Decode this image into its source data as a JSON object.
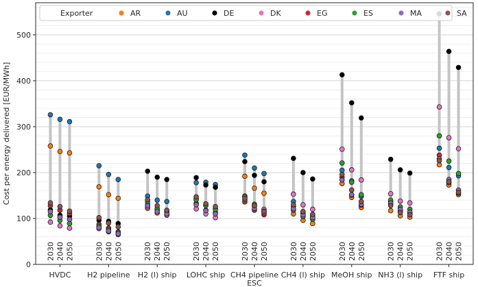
{
  "chart_data": {
    "type": "scatter",
    "xlabel": "ESC",
    "ylabel": "Cost per energy delivered [EUR/MWh]",
    "ylim": [
      0,
      570
    ],
    "yticks": [
      0,
      100,
      200,
      300,
      400,
      500
    ],
    "grid": "horizontal",
    "legend": {
      "title": "Exporter",
      "placement": "top"
    },
    "categories": [
      "HVDC",
      "H2 pipeline",
      "H2 (l) ship",
      "LOHC ship",
      "CH4 pipeline",
      "CH4 (l) ship",
      "MeOH ship",
      "NH3 (l) ship",
      "FTF ship"
    ],
    "years": [
      "2030",
      "2040",
      "2050"
    ],
    "series": [
      {
        "name": "AR",
        "color": "#ff7f0e",
        "values": [
          [
            258,
            246,
            243
          ],
          [
            169,
            152,
            144
          ],
          [
            122,
            112,
            108
          ],
          [
            143,
            130,
            121
          ],
          [
            192,
            166,
            155
          ],
          [
            110,
            96,
            89
          ],
          [
            176,
            146,
            124
          ],
          [
            117,
            106,
            103
          ],
          [
            217,
            173,
            152
          ]
        ]
      },
      {
        "name": "AU",
        "color": "#1f77b4",
        "values": [
          [
            326,
            316,
            311
          ],
          [
            215,
            196,
            185
          ],
          [
            149,
            140,
            137
          ],
          [
            178,
            179,
            174
          ],
          [
            238,
            210,
            198
          ],
          [
            137,
            111,
            103
          ],
          [
            205,
            182,
            148
          ],
          [
            137,
            115,
            112
          ],
          [
            253,
            211,
            193
          ]
        ]
      },
      {
        "name": "DE",
        "color": "#000000",
        "values": [
          [
            119,
            107,
            105
          ],
          [
            96,
            94,
            89
          ],
          [
            203,
            190,
            185
          ],
          [
            189,
            173,
            168
          ],
          [
            224,
            194,
            180
          ],
          [
            231,
            200,
            186
          ],
          [
            413,
            352,
            319
          ],
          [
            229,
            206,
            199
          ],
          [
            546,
            464,
            429
          ]
        ]
      },
      {
        "name": "DK",
        "color": "#e377c2",
        "values": [
          [
            92,
            84,
            79
          ],
          [
            78,
            71,
            65
          ],
          [
            125,
            117,
            107
          ],
          [
            121,
            110,
            102
          ],
          [
            149,
            127,
            120
          ],
          [
            153,
            130,
            120
          ],
          [
            251,
            206,
            184
          ],
          [
            154,
            138,
            134
          ],
          [
            343,
            276,
            252
          ]
        ]
      },
      {
        "name": "EG",
        "color": "#d62728",
        "values": [
          [
            128,
            118,
            111
          ],
          [
            87,
            79,
            71
          ],
          [
            130,
            119,
            114
          ],
          [
            133,
            118,
            113
          ],
          [
            136,
            118,
            108
          ],
          [
            126,
            114,
            107
          ],
          [
            190,
            151,
            129
          ],
          [
            130,
            117,
            111
          ],
          [
            238,
            178,
            155
          ]
        ]
      },
      {
        "name": "ES",
        "color": "#2ca02c",
        "values": [
          [
            107,
            96,
            89
          ],
          [
            83,
            76,
            70
          ],
          [
            136,
            122,
            116
          ],
          [
            141,
            128,
            120
          ],
          [
            147,
            131,
            116
          ],
          [
            118,
            104,
            98
          ],
          [
            221,
            179,
            152
          ],
          [
            140,
            125,
            120
          ],
          [
            280,
            225,
            198
          ]
        ]
      },
      {
        "name": "MA",
        "color": "#9467bd",
        "values": [
          [
            115,
            103,
            98
          ],
          [
            80,
            73,
            67
          ],
          [
            128,
            115,
            110
          ],
          [
            130,
            117,
            110
          ],
          [
            141,
            122,
            112
          ],
          [
            121,
            108,
            102
          ],
          [
            184,
            152,
            131
          ],
          [
            134,
            120,
            114
          ],
          [
            230,
            185,
            162
          ]
        ]
      },
      {
        "name": "SA",
        "color": "#8c564b",
        "values": [
          [
            134,
            126,
            116
          ],
          [
            102,
            90,
            82
          ],
          [
            141,
            128,
            118
          ],
          [
            147,
            132,
            126
          ],
          [
            144,
            128,
            115
          ],
          [
            130,
            115,
            109
          ],
          [
            196,
            162,
            137
          ],
          [
            128,
            113,
            108
          ],
          [
            226,
            180,
            157
          ]
        ]
      }
    ]
  }
}
